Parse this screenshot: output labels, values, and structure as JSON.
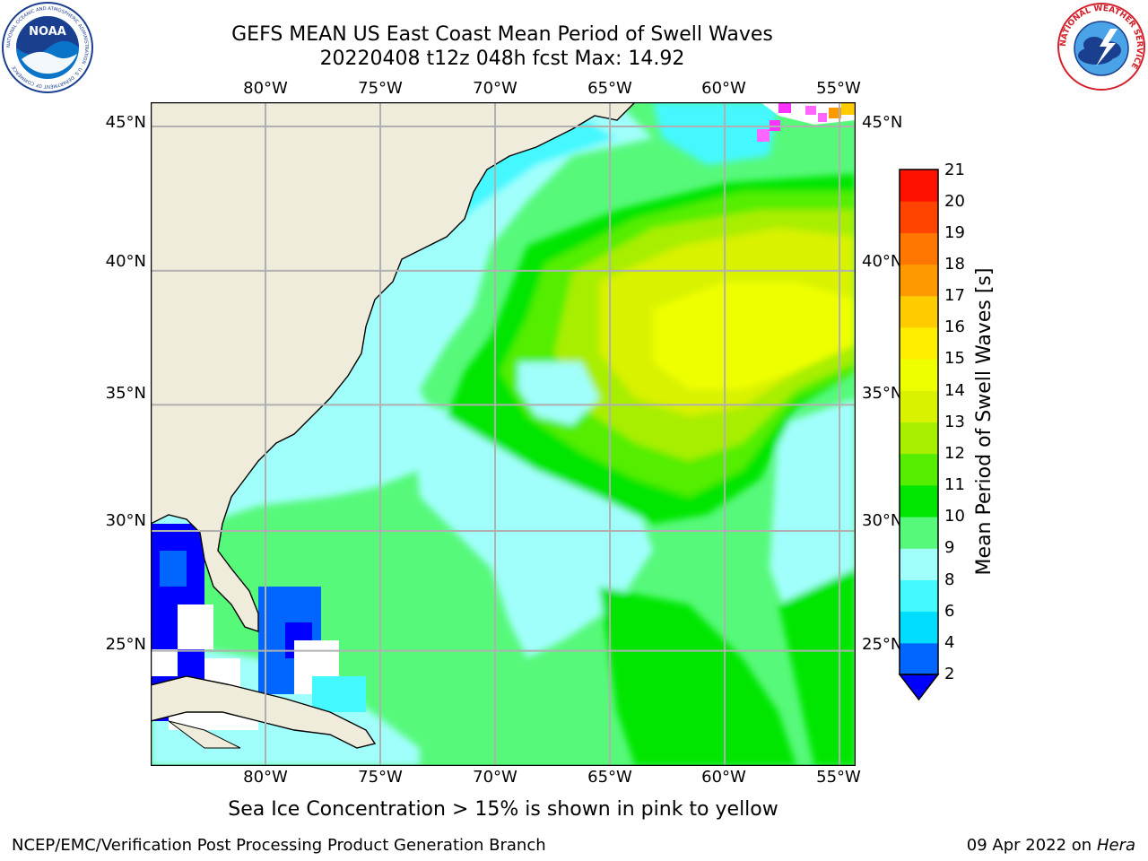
{
  "header": {
    "title": "GEFS MEAN US East Coast Mean Period of Swell Waves",
    "subtitle": "20220408 t12z 048h fcst   Max: 14.92"
  },
  "logos": {
    "noaa_text": "NOAA",
    "noaa_ring_text": "NATIONAL OCEANIC AND ATMOSPHERIC ADMINISTRATION · U.S. DEPARTMENT OF COMMERCE",
    "nws_ring_text": "NATIONAL WEATHER SERVICE"
  },
  "map": {
    "lon_ticks": [
      "80°W",
      "75°W",
      "70°W",
      "65°W",
      "60°W",
      "55°W"
    ],
    "lat_ticks": [
      "45°N",
      "40°N",
      "35°N",
      "30°N",
      "25°N"
    ],
    "lon_values": [
      -80,
      -75,
      -70,
      -65,
      -60,
      -55
    ],
    "lat_values": [
      45,
      40,
      35,
      30,
      25
    ],
    "extent": {
      "lon_min": -85,
      "lon_max": -54.3,
      "lat_min": 20.0,
      "lat_max": 45.8
    },
    "land_color": "#efecdc",
    "grid_color": "#b0b0b0"
  },
  "colorbar": {
    "label": "Mean Period of Swell Waves [s]",
    "ticks": [
      "21",
      "20",
      "19",
      "18",
      "17",
      "16",
      "15",
      "14",
      "13",
      "12",
      "11",
      "10",
      "9",
      "8",
      "6",
      "4",
      "2"
    ],
    "levels": [
      2,
      4,
      6,
      8,
      9,
      10,
      11,
      12,
      13,
      14,
      15,
      16,
      17,
      18,
      19,
      20,
      21
    ],
    "colors": [
      "#0066ff",
      "#00ddff",
      "#44f8ff",
      "#a0fffb",
      "#56f97a",
      "#00e600",
      "#55ee00",
      "#a8ee00",
      "#d8f200",
      "#eeff00",
      "#ffee00",
      "#ffcc00",
      "#ff9900",
      "#ff7700",
      "#ff4400",
      "#ff1100"
    ],
    "under_color": "#0000ff"
  },
  "notes": {
    "ice": "Sea Ice Concentration > 15% is shown in pink to yellow"
  },
  "footer": {
    "left": "NCEP/EMC/Verification Post Processing Product Generation Branch",
    "date": "09 Apr 2022 on ",
    "machine": "Hera"
  }
}
